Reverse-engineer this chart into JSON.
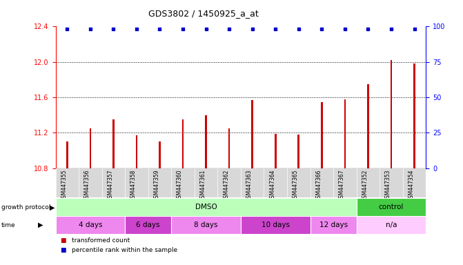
{
  "title": "GDS3802 / 1450925_a_at",
  "samples": [
    "GSM447355",
    "GSM447356",
    "GSM447357",
    "GSM447358",
    "GSM447359",
    "GSM447360",
    "GSM447361",
    "GSM447362",
    "GSM447363",
    "GSM447364",
    "GSM447365",
    "GSM447366",
    "GSM447367",
    "GSM447352",
    "GSM447353",
    "GSM447354"
  ],
  "bar_values": [
    11.1,
    11.25,
    11.35,
    11.17,
    11.1,
    11.35,
    11.4,
    11.25,
    11.57,
    11.19,
    11.18,
    11.55,
    11.58,
    11.75,
    12.02,
    11.98
  ],
  "ylim_left": [
    10.8,
    12.4
  ],
  "ylim_right": [
    0,
    100
  ],
  "yticks_left": [
    10.8,
    11.2,
    11.6,
    12.0,
    12.4
  ],
  "yticks_right": [
    0,
    25,
    50,
    75,
    100
  ],
  "bar_color": "#cc0000",
  "dot_color": "#0000cc",
  "grid_lines": [
    11.2,
    11.6,
    12.0
  ],
  "protocol_groups": [
    {
      "label": "DMSO",
      "start": 0,
      "end": 13,
      "color": "#bbffbb"
    },
    {
      "label": "control",
      "start": 13,
      "end": 16,
      "color": "#44cc44"
    }
  ],
  "time_groups": [
    {
      "label": "4 days",
      "start": 0,
      "end": 3,
      "color": "#ee88ee"
    },
    {
      "label": "6 days",
      "start": 3,
      "end": 5,
      "color": "#cc44cc"
    },
    {
      "label": "8 days",
      "start": 5,
      "end": 8,
      "color": "#ee88ee"
    },
    {
      "label": "10 days",
      "start": 8,
      "end": 11,
      "color": "#cc44cc"
    },
    {
      "label": "12 days",
      "start": 11,
      "end": 13,
      "color": "#ee88ee"
    },
    {
      "label": "n/a",
      "start": 13,
      "end": 16,
      "color": "#ffccff"
    }
  ],
  "legend_items": [
    {
      "label": "transformed count",
      "color": "#cc0000"
    },
    {
      "label": "percentile rank within the sample",
      "color": "#0000cc"
    }
  ]
}
